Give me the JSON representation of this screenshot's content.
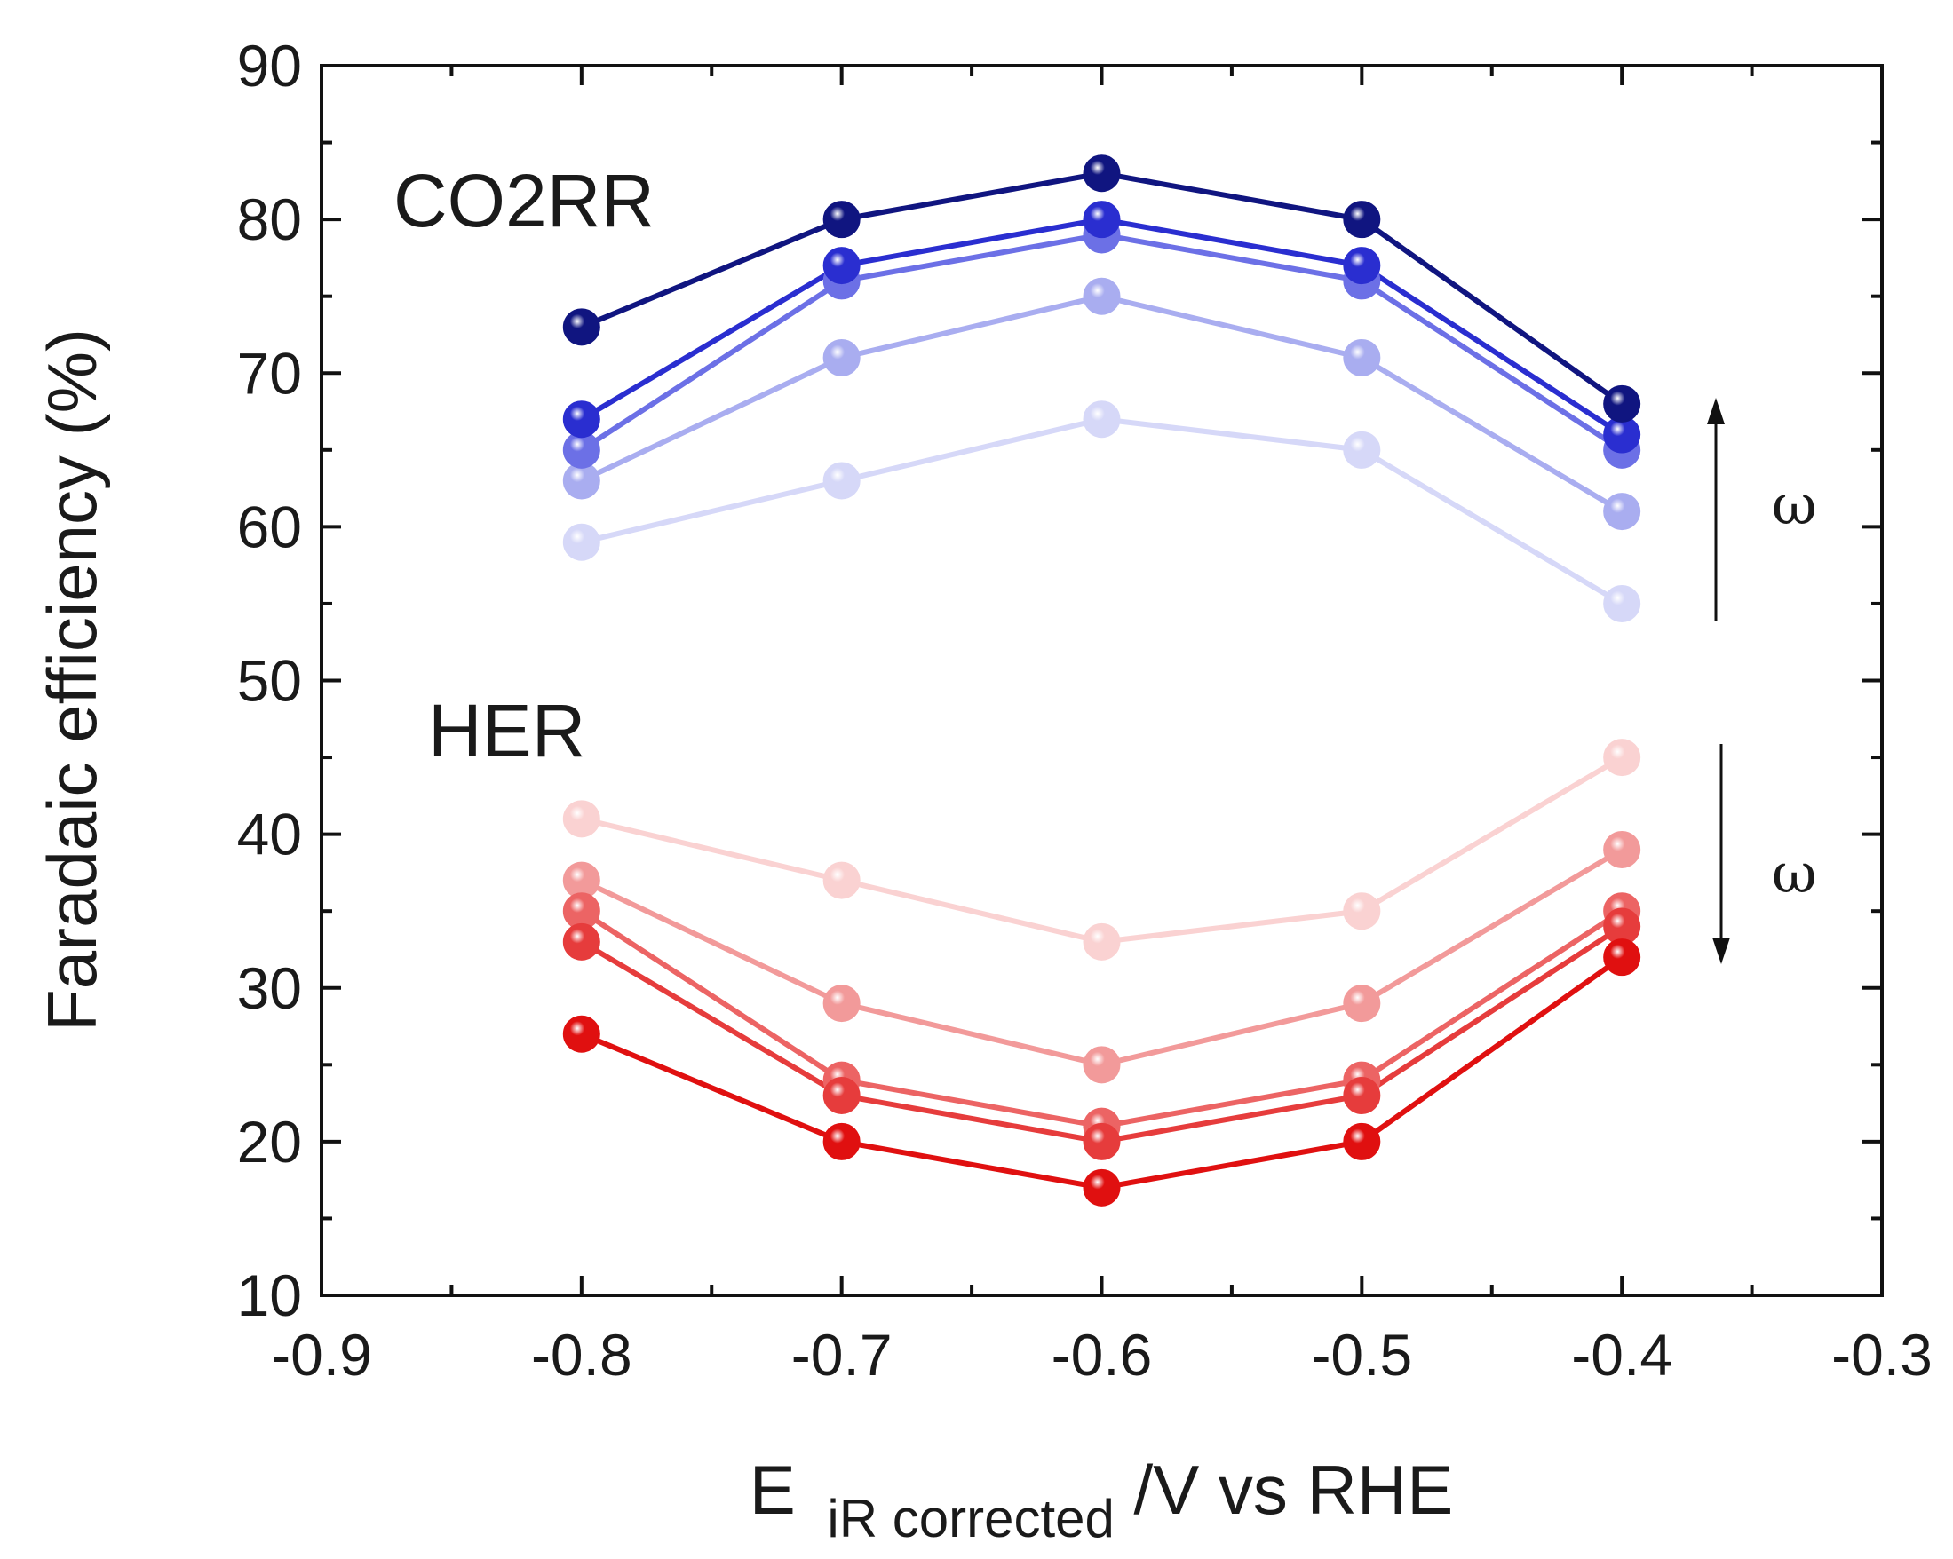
{
  "chart_data": {
    "type": "line",
    "title": "",
    "xlabel": {
      "main": "E",
      "subscript": "iR corrected",
      "suffix": "/V vs RHE"
    },
    "ylabel": "Faradaic efficiency (%)",
    "xlim": [
      -0.9,
      -0.3
    ],
    "ylim": [
      10,
      90
    ],
    "x_ticks": [
      -0.9,
      -0.8,
      -0.7,
      -0.6,
      -0.5,
      -0.4,
      -0.3
    ],
    "x_tick_labels": [
      "-0.9",
      "-0.8",
      "-0.7",
      "-0.6",
      "-0.5",
      "-0.4",
      "-0.3"
    ],
    "y_ticks": [
      10,
      20,
      30,
      40,
      50,
      60,
      70,
      80,
      90
    ],
    "y_tick_labels": [
      "10",
      "20",
      "30",
      "40",
      "50",
      "60",
      "70",
      "80",
      "90"
    ],
    "x": [
      -0.8,
      -0.7,
      -0.6,
      -0.5,
      -0.4
    ],
    "series": [
      {
        "group": "CO2RR",
        "color": "#d6d8f8",
        "values": [
          59,
          63,
          67,
          65,
          55
        ]
      },
      {
        "group": "CO2RR",
        "color": "#a9adf0",
        "values": [
          63,
          71,
          75,
          71,
          61
        ]
      },
      {
        "group": "CO2RR",
        "color": "#6c70e6",
        "values": [
          65,
          76,
          79,
          76,
          65
        ]
      },
      {
        "group": "CO2RR",
        "color": "#2a2ed0",
        "values": [
          67,
          77,
          80,
          77,
          66
        ]
      },
      {
        "group": "CO2RR",
        "color": "#101580",
        "values": [
          73,
          80,
          83,
          80,
          68
        ]
      },
      {
        "group": "HER",
        "color": "#fad2d2",
        "values": [
          41,
          37,
          33,
          35,
          45
        ]
      },
      {
        "group": "HER",
        "color": "#f29a9a",
        "values": [
          37,
          29,
          25,
          29,
          39
        ]
      },
      {
        "group": "HER",
        "color": "#ec6464",
        "values": [
          35,
          24,
          21,
          24,
          35
        ]
      },
      {
        "group": "HER",
        "color": "#e63c3c",
        "values": [
          33,
          23,
          20,
          23,
          34
        ]
      },
      {
        "group": "HER",
        "color": "#e01010",
        "values": [
          27,
          20,
          17,
          20,
          32
        ]
      }
    ],
    "annotations": {
      "co2rr_label": "CO2RR",
      "her_label": "HER",
      "omega_up": "ω",
      "omega_down": "ω"
    }
  }
}
